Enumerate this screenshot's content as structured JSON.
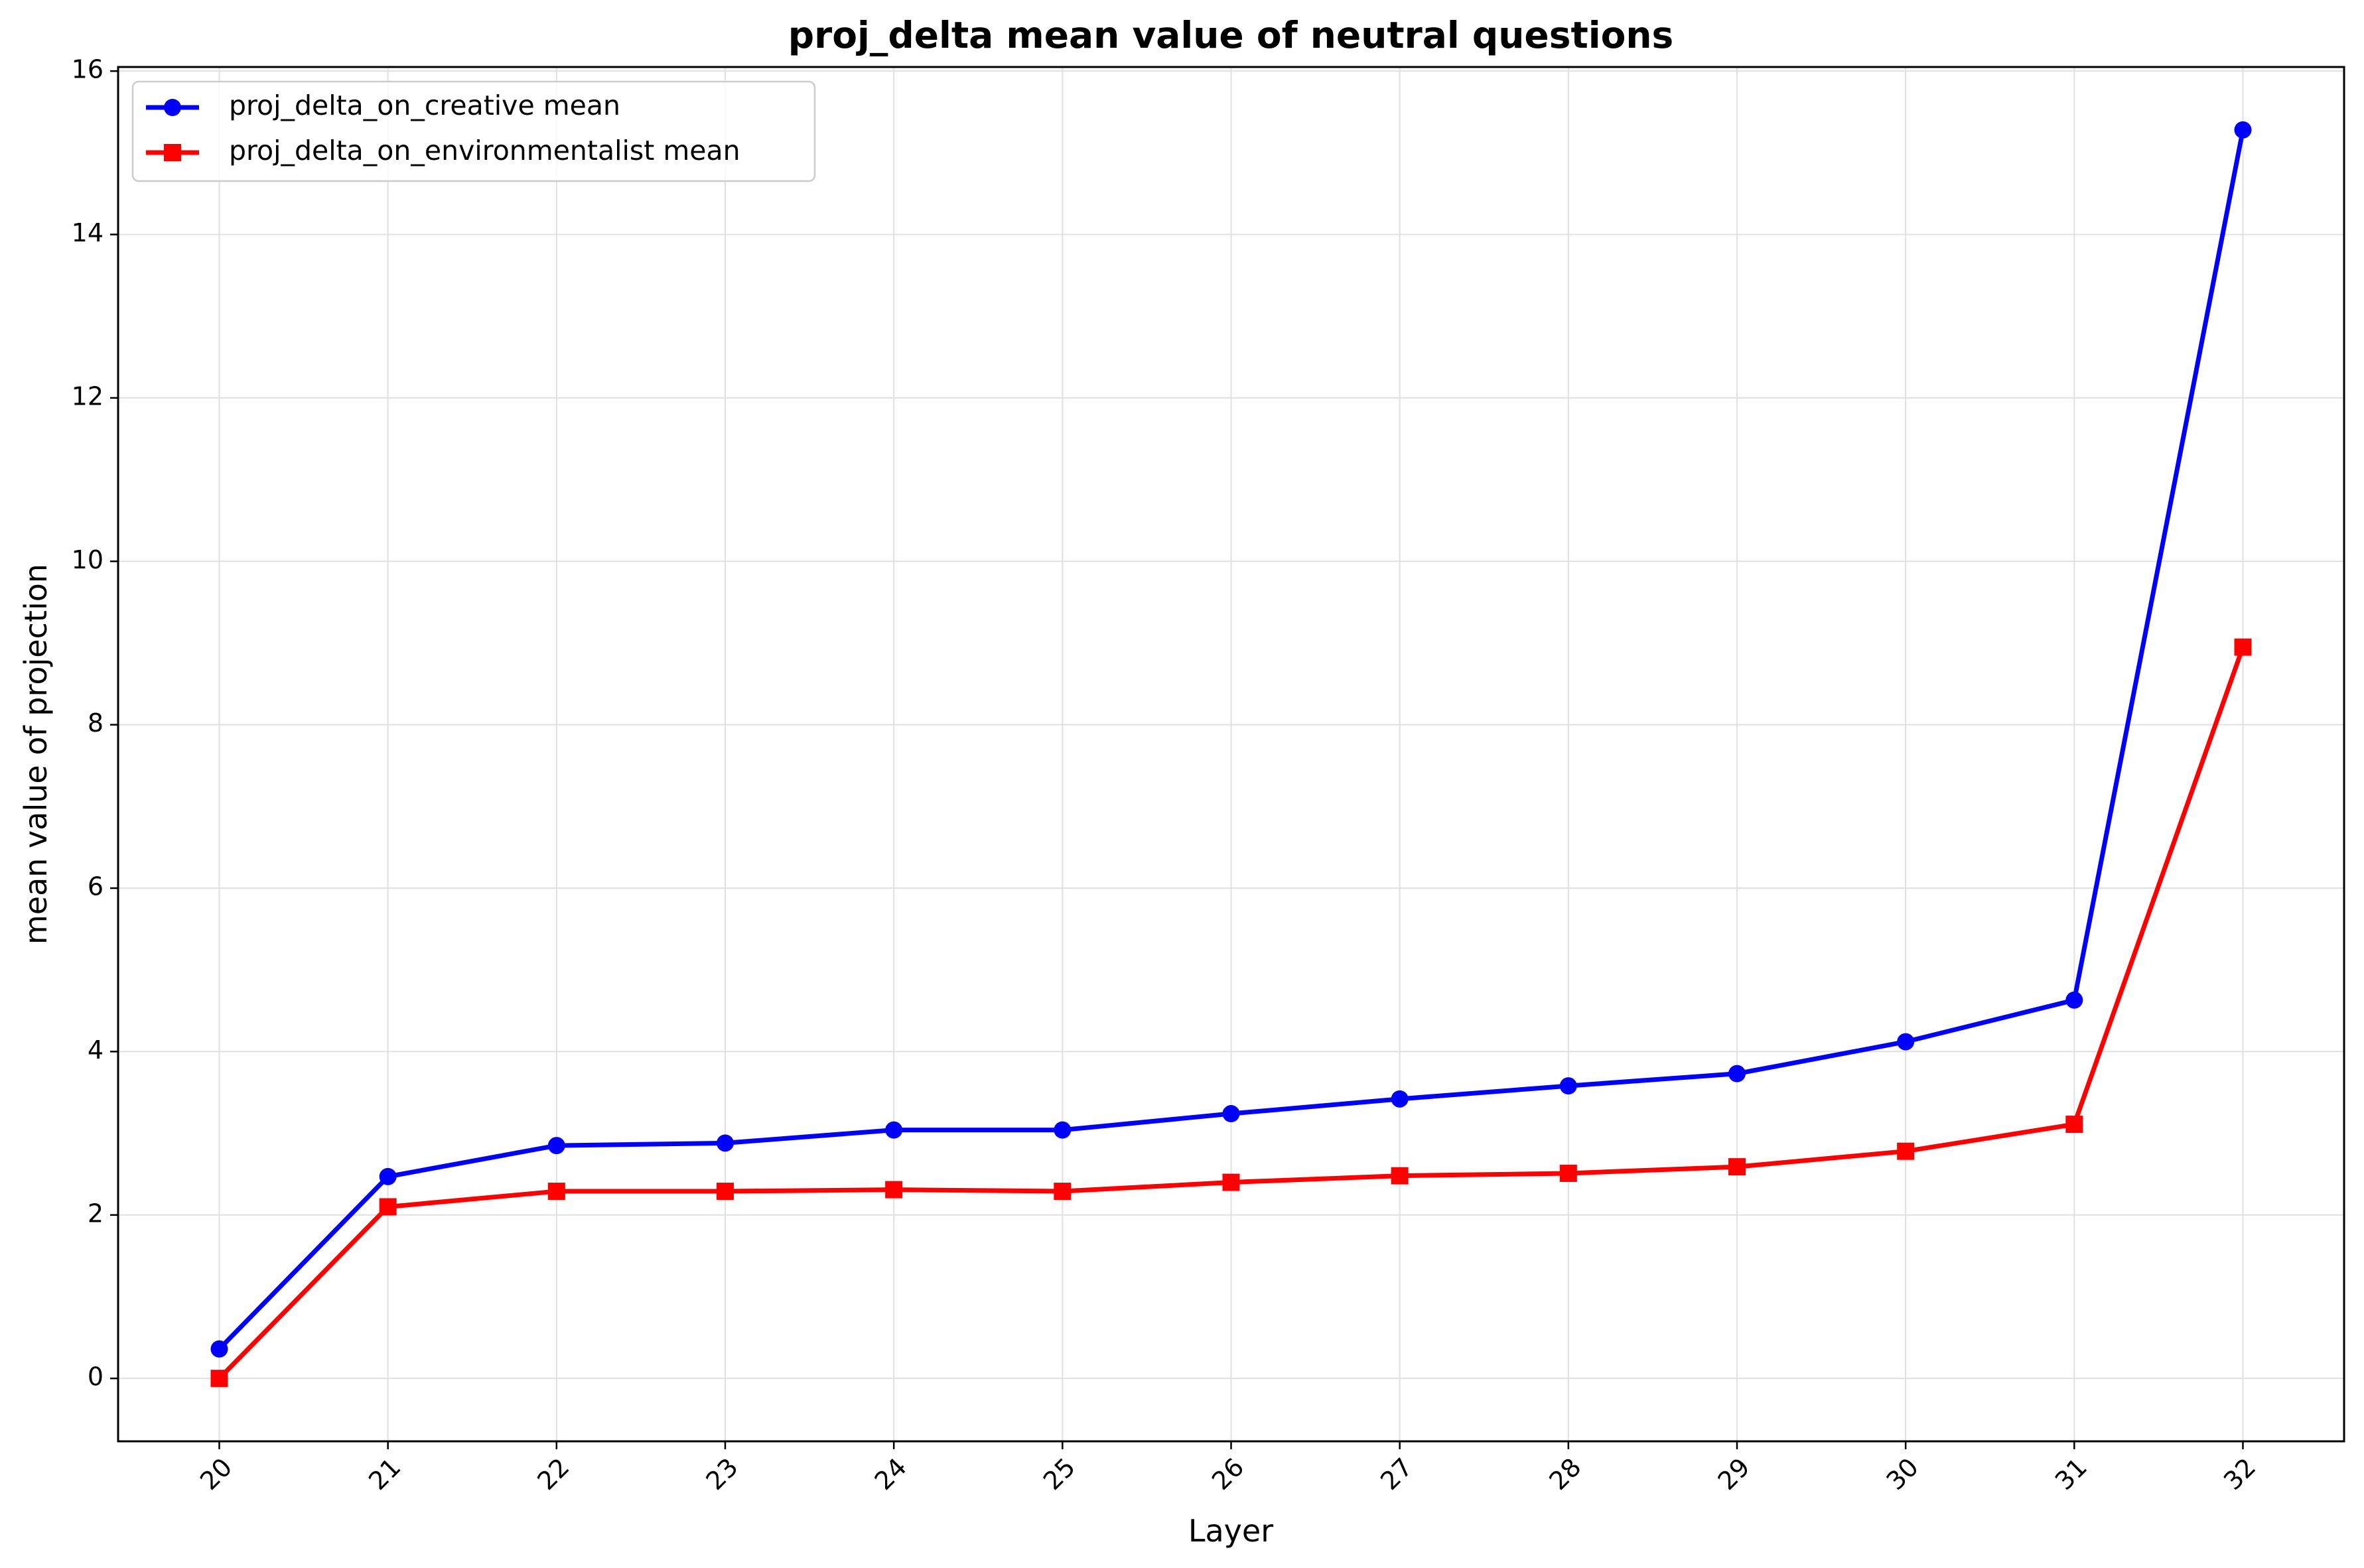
{
  "chart_data": {
    "type": "line",
    "title": "proj_delta mean value of neutral questions",
    "xlabel": "Layer",
    "ylabel": "mean value of projection",
    "x": [
      20,
      21,
      22,
      23,
      24,
      25,
      26,
      27,
      28,
      29,
      30,
      31,
      32
    ],
    "x_tick_labels": [
      "20",
      "21",
      "22",
      "23",
      "24",
      "25",
      "26",
      "27",
      "28",
      "29",
      "30",
      "31",
      "32"
    ],
    "y_ticks": [
      0,
      2,
      4,
      6,
      8,
      10,
      12,
      14,
      16
    ],
    "y_tick_labels": [
      "0",
      "2",
      "4",
      "6",
      "8",
      "10",
      "12",
      "14",
      "16"
    ],
    "xlim": [
      19.4,
      32.6
    ],
    "ylim": [
      -0.77,
      16.05
    ],
    "grid": true,
    "legend_position": "top-left",
    "series": [
      {
        "name": "proj_delta_on_creative mean",
        "color": "#0000ff",
        "marker": "circle",
        "values": [
          0.36,
          2.47,
          2.85,
          2.88,
          3.04,
          3.04,
          3.24,
          3.42,
          3.58,
          3.73,
          4.12,
          4.63,
          15.28
        ]
      },
      {
        "name": "proj_delta_on_environmentalist mean",
        "color": "#ff0000",
        "marker": "square",
        "values": [
          0.0,
          2.1,
          2.29,
          2.29,
          2.31,
          2.29,
          2.4,
          2.48,
          2.51,
          2.59,
          2.78,
          3.11,
          8.95
        ]
      }
    ]
  }
}
